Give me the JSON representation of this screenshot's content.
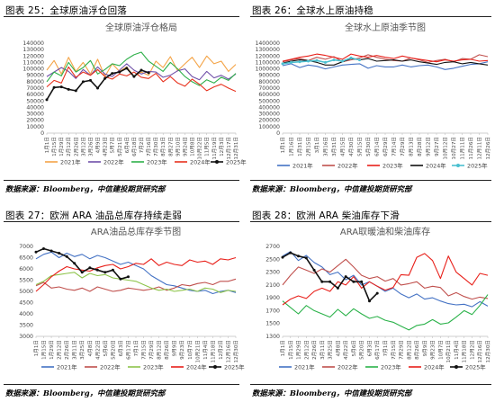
{
  "figures": [
    {
      "label": "图表 25：全球原油浮仓回落",
      "source": "数据来源：Bloomberg，中信建投期货研究部"
    },
    {
      "label": "图表 26：全球水上原油持稳",
      "source": "数据来源：Bloomberg，中信建投期货研究部"
    },
    {
      "label": "图表 27：欧洲 ARA 油品总库存持续走弱",
      "source": "数据来源：Bloomberg，中信建投期货研究部"
    },
    {
      "label": "图表 28：欧洲 ARA 柴油库存下滑",
      "source": "数据来源：Bloomberg，中信建投期货研究部"
    }
  ],
  "chart_data": [
    {
      "type": "line",
      "title": "全球原油浮仓格局",
      "xlabel": "",
      "ylabel": "",
      "ylim": [
        0,
        140000
      ],
      "yticks": [
        "0",
        "10000",
        "20000",
        "30000",
        "40000",
        "50000",
        "60000",
        "70000",
        "80000",
        "90000",
        "100000",
        "110000",
        "120000",
        "130000",
        "140000"
      ],
      "categories": [
        "1月1日",
        "1月15日",
        "1月29日",
        "2月12日",
        "2月26日",
        "3月12日",
        "3月26日",
        "4月9日",
        "4月23日",
        "5月7日",
        "5月21日",
        "6月4日",
        "6月18日",
        "7月2日",
        "7月16日",
        "7月30日",
        "8月13日",
        "8月27日",
        "9月10日",
        "9月24日",
        "10月8日",
        "10月22日",
        "11月5日",
        "11月19日",
        "12月3日",
        "12月17日",
        "12月31日"
      ],
      "grid": false,
      "legend": "bottom",
      "series": [
        {
          "name": "2021年",
          "color": "#F4A447",
          "values": [
            98000,
            113000,
            92000,
            118000,
            96000,
            110000,
            92000,
            115000,
            88000,
            108000,
            96000,
            103000,
            88000,
            95000,
            90000,
            112000,
            102000,
            119000,
            97000,
            108000,
            118000,
            102000,
            120000,
            108000,
            112000,
            96000,
            107000
          ]
        },
        {
          "name": "2022年",
          "color": "#6F4FA8",
          "values": [
            88000,
            95000,
            102000,
            96000,
            85000,
            99000,
            90000,
            103000,
            92000,
            88000,
            98000,
            108000,
            98000,
            92000,
            96000,
            95000,
            87000,
            90000,
            97000,
            100000,
            88000,
            83000,
            96000,
            86000,
            90000,
            84000,
            92000
          ]
        },
        {
          "name": "2023年",
          "color": "#2FB04A",
          "values": [
            80000,
            95000,
            89000,
            110000,
            95000,
            102000,
            113000,
            92000,
            99000,
            108000,
            105000,
            115000,
            122000,
            126000,
            112000,
            104000,
            96000,
            110000,
            100000,
            88000,
            80000,
            74000,
            83000,
            78000,
            87000,
            82000,
            93000
          ]
        },
        {
          "name": "2024年",
          "color": "#E8321E",
          "values": [
            72000,
            82000,
            78000,
            103000,
            87000,
            95000,
            90000,
            99000,
            88000,
            84000,
            92000,
            89000,
            95000,
            87000,
            85000,
            93000,
            80000,
            88000,
            78000,
            73000,
            84000,
            76000,
            66000,
            72000,
            76000,
            70000,
            65000
          ]
        },
        {
          "name": "2025年",
          "color": "#111111",
          "values": [
            52000,
            71000,
            72000,
            68000,
            66000,
            80000,
            82000,
            70000,
            85000,
            93000,
            95000,
            101000,
            88000,
            98000,
            94000,
            null,
            null,
            null,
            null,
            null,
            null,
            null,
            null,
            null,
            null,
            null,
            null
          ]
        }
      ]
    },
    {
      "type": "line",
      "title": "全球水上原油季节图",
      "xlabel": "",
      "ylabel": "",
      "ylim": [
        0,
        1400000
      ],
      "yticks": [
        "0",
        "100000",
        "200000",
        "300000",
        "400000",
        "500000",
        "600000",
        "700000",
        "800000",
        "900000",
        "1000000",
        "1100000",
        "1200000",
        "1300000",
        "1400000"
      ],
      "categories": [
        "1月1日",
        "1月16日",
        "1月31日",
        "2月15日",
        "3月1日",
        "3月16日",
        "3月31日",
        "4月15日",
        "4月30日",
        "5月15日",
        "5月30日",
        "6月14日",
        "6月29日",
        "7月14日",
        "7月29日",
        "8月13日",
        "8月28日",
        "9月12日",
        "9月27日",
        "10月12日",
        "10月27日",
        "11月11日",
        "11月26日",
        "12月11日",
        "12月26日"
      ],
      "grid": false,
      "legend": "bottom",
      "series": [
        {
          "name": "2021年",
          "color": "#4472C4",
          "values": [
            1050000,
            1080000,
            1020000,
            1060000,
            1040000,
            1000000,
            1030000,
            1060000,
            1070000,
            1080000,
            1010000,
            1050000,
            1030000,
            1030000,
            1060000,
            1030000,
            1050000,
            1060000,
            1030000,
            990000,
            1010000,
            1040000,
            1070000,
            1080000,
            1110000
          ]
        },
        {
          "name": "2022年",
          "color": "#C0504D",
          "values": [
            1110000,
            1140000,
            1160000,
            1130000,
            1180000,
            1150000,
            1190000,
            1110000,
            1140000,
            1170000,
            1220000,
            1180000,
            1150000,
            1130000,
            1120000,
            1170000,
            1140000,
            1100000,
            1130000,
            1150000,
            1110000,
            1160000,
            1150000,
            1220000,
            1190000
          ]
        },
        {
          "name": "2023年",
          "color": "#E8201A",
          "values": [
            1120000,
            1150000,
            1180000,
            1200000,
            1230000,
            1210000,
            1180000,
            1150000,
            1230000,
            1200000,
            1180000,
            1210000,
            1180000,
            1160000,
            1200000,
            1170000,
            1150000,
            1130000,
            1110000,
            1140000,
            1120000,
            1140000,
            1150000,
            1120000,
            1130000
          ]
        },
        {
          "name": "2024年",
          "color": "#111111",
          "values": [
            1090000,
            1120000,
            1140000,
            1130000,
            1100000,
            1060000,
            1060000,
            1110000,
            1160000,
            1140000,
            1160000,
            1120000,
            1130000,
            1140000,
            1120000,
            1140000,
            1110000,
            1090000,
            1070000,
            1100000,
            1110000,
            1080000,
            1100000,
            1080000,
            1060000
          ]
        },
        {
          "name": "2025年",
          "color": "#4BC0D0",
          "values": [
            1080000,
            1100000,
            1110000,
            1120000,
            1130000,
            1100000,
            1140000,
            1120000,
            1170000,
            1140000,
            null,
            null,
            null,
            null,
            null,
            null,
            null,
            null,
            null,
            null,
            null,
            null,
            null,
            null,
            null
          ]
        }
      ]
    },
    {
      "type": "line",
      "title": "ARA油品总库存季节图",
      "xlabel": "",
      "ylabel": "",
      "ylim": [
        3000,
        7000
      ],
      "yticks": [
        "3000",
        "3500",
        "4000",
        "4500",
        "5000",
        "5500",
        "6000",
        "6500",
        "7000"
      ],
      "categories": [
        "1月1日",
        "1月15日",
        "1月29日",
        "2月12日",
        "2月26日",
        "3月11日",
        "3月25日",
        "4月8日",
        "4月22日",
        "5月6日",
        "5月20日",
        "6月3日",
        "6月17日",
        "7月1日",
        "7月15日",
        "7月29日",
        "8月12日",
        "8月26日",
        "9月9日",
        "9月23日",
        "10月7日",
        "10月21日",
        "11月4日",
        "11月18日",
        "12月2日",
        "12月16日",
        "12月30日"
      ],
      "grid": false,
      "legend": "bottom",
      "series": [
        {
          "name": "2021年",
          "color": "#4472C4",
          "values": [
            6450,
            6650,
            6750,
            6500,
            6700,
            6550,
            6650,
            6450,
            6600,
            6500,
            6350,
            6200,
            6300,
            6150,
            6000,
            5700,
            5500,
            5300,
            5250,
            5150,
            5050,
            5000,
            5050,
            4900,
            5000,
            5050,
            4950
          ]
        },
        {
          "name": "2022年",
          "color": "#C0504D",
          "values": [
            5250,
            5400,
            5150,
            5200,
            5100,
            5050,
            5150,
            5000,
            5200,
            5100,
            5000,
            5050,
            5150,
            5100,
            5050,
            5100,
            5200,
            5050,
            5150,
            5300,
            5250,
            5350,
            5400,
            5300,
            5450,
            5450,
            5550
          ]
        },
        {
          "name": "2023年",
          "color": "#8EC44B",
          "values": [
            5300,
            5450,
            5700,
            5750,
            5800,
            5850,
            5600,
            5800,
            5700,
            5750,
            5600,
            5550,
            5500,
            5450,
            5300,
            5150,
            5050,
            5100,
            5000,
            5050,
            5100,
            5000,
            5150,
            5100,
            4950,
            5050,
            5000
          ]
        },
        {
          "name": "2024年",
          "color": "#E8201A",
          "values": [
            5000,
            5300,
            5650,
            5900,
            6100,
            6000,
            5950,
            5900,
            6050,
            6150,
            6200,
            6000,
            6100,
            6250,
            6200,
            6450,
            6150,
            6300,
            6200,
            6150,
            6400,
            6300,
            6350,
            6200,
            6450,
            6400,
            6500
          ]
        },
        {
          "name": "2025年",
          "color": "#111111",
          "values": [
            6750,
            6900,
            6800,
            6700,
            6550,
            6250,
            5850,
            6050,
            5950,
            5850,
            5950,
            5550,
            5650,
            null,
            null,
            null,
            null,
            null,
            null,
            null,
            null,
            null,
            null,
            null,
            null,
            null,
            null
          ]
        }
      ]
    },
    {
      "type": "line",
      "title": "ARA取暖油和柴油库存",
      "xlabel": "",
      "ylabel": "",
      "ylim": [
        1300,
        2700
      ],
      "yticks": [
        "1300",
        "1500",
        "1700",
        "1900",
        "2100",
        "2300",
        "2500",
        "2700"
      ],
      "categories": [
        "1月1日",
        "1月15日",
        "1月29日",
        "2月12日",
        "2月26日",
        "3月11日",
        "3月25日",
        "4月8日",
        "4月22日",
        "5月6日",
        "5月20日",
        "6月3日",
        "6月17日",
        "7月1日",
        "7月15日",
        "7月29日",
        "8月12日",
        "8月26日",
        "9月9日",
        "9月23日",
        "10月7日",
        "10月21日",
        "11月4日",
        "11月18日",
        "12月2日",
        "12月16日",
        "12月30日"
      ],
      "grid": false,
      "legend": "bottom",
      "series": [
        {
          "name": "2021年",
          "color": "#4472C4",
          "values": [
            2550,
            2620,
            2480,
            2560,
            2450,
            2380,
            2260,
            2300,
            2180,
            2250,
            2100,
            2150,
            2080,
            2000,
            2050,
            1960,
            1900,
            1960,
            1880,
            1900,
            1850,
            1810,
            1790,
            1800,
            1760,
            1840,
            1770
          ]
        },
        {
          "name": "2022年",
          "color": "#C0504D",
          "values": [
            2100,
            2250,
            2380,
            2330,
            2280,
            2350,
            2300,
            2400,
            2500,
            2380,
            2250,
            2200,
            2230,
            2160,
            2200,
            2100,
            2120,
            2150,
            2050,
            2080,
            2060,
            1930,
            1980,
            1920,
            1880,
            1910,
            1890
          ]
        },
        {
          "name": "2023年",
          "color": "#2BB24A",
          "values": [
            1850,
            1750,
            1650,
            1780,
            1700,
            1650,
            1600,
            1720,
            1620,
            1730,
            1650,
            1580,
            1610,
            1550,
            1520,
            1460,
            1400,
            1470,
            1490,
            1560,
            1490,
            1510,
            1600,
            1700,
            1640,
            1780,
            1950
          ]
        },
        {
          "name": "2024年",
          "color": "#E8201A",
          "values": [
            1790,
            1880,
            1930,
            1890,
            2000,
            2050,
            2000,
            2150,
            2100,
            2230,
            2050,
            2150,
            2080,
            2020,
            2060,
            2260,
            2250,
            2530,
            2590,
            2480,
            2200,
            2550,
            2300,
            2200,
            2100,
            2280,
            2250
          ]
        },
        {
          "name": "2025年",
          "color": "#111111",
          "values": [
            2530,
            2600,
            2550,
            2520,
            2330,
            2150,
            2150,
            2050,
            2230,
            2150,
            2150,
            1850,
            1970,
            null,
            null,
            null,
            null,
            null,
            null,
            null,
            null,
            null,
            null,
            null,
            null,
            null,
            null
          ]
        }
      ]
    }
  ]
}
